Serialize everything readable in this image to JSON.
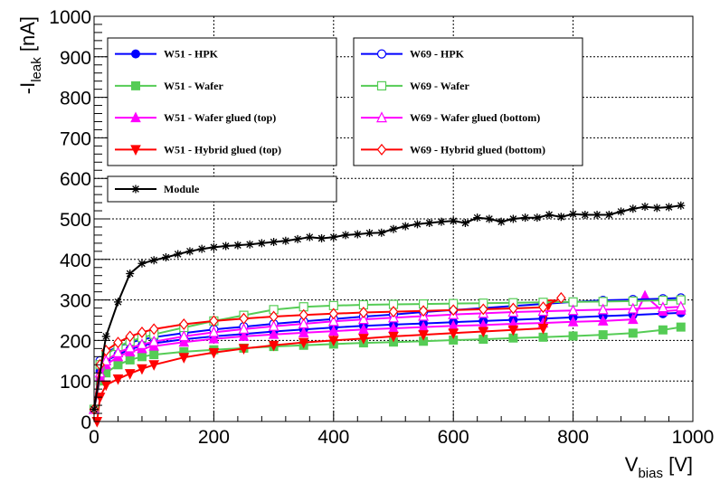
{
  "chart_data": {
    "type": "line",
    "xlabel": "V",
    "xlabel_sub": "bias",
    "xlabel_unit": " [V]",
    "ylabel": "-I",
    "ylabel_sub": "leak",
    "ylabel_unit": " [nA]",
    "xlim": [
      0,
      1000
    ],
    "ylim": [
      0,
      1000
    ],
    "x_ticks": [
      0,
      200,
      400,
      600,
      800,
      1000
    ],
    "y_ticks": [
      0,
      100,
      200,
      300,
      400,
      500,
      600,
      700,
      800,
      900,
      1000
    ],
    "grid": true,
    "legend": [
      {
        "placement": "top-left",
        "series": [
          0,
          1,
          2,
          3
        ]
      },
      {
        "placement": "top-right",
        "series": [
          4,
          5,
          6,
          7
        ]
      },
      {
        "placement": "middle-left",
        "series": [
          8
        ]
      }
    ],
    "series": [
      {
        "name": "W51 - HPK",
        "color": "#0000ff",
        "marker": "circle-filled",
        "x": [
          0,
          10,
          20,
          40,
          60,
          80,
          100,
          150,
          200,
          250,
          300,
          350,
          400,
          450,
          500,
          550,
          600,
          650,
          700,
          750,
          800,
          850,
          900,
          950,
          980
        ],
        "y": [
          30,
          125,
          150,
          165,
          178,
          187,
          193,
          203,
          210,
          216,
          222,
          227,
          232,
          236,
          239,
          242,
          245,
          248,
          251,
          254,
          257,
          260,
          263,
          266,
          268
        ]
      },
      {
        "name": "W51 - Wafer",
        "color": "#55cc55",
        "marker": "square-filled",
        "x": [
          0,
          10,
          20,
          40,
          60,
          80,
          100,
          150,
          200,
          250,
          300,
          350,
          400,
          450,
          500,
          550,
          600,
          650,
          700,
          750,
          800,
          850,
          900,
          950,
          980
        ],
        "y": [
          30,
          100,
          120,
          140,
          152,
          160,
          165,
          172,
          177,
          181,
          185,
          188,
          191,
          194,
          196,
          198,
          201,
          203,
          206,
          208,
          211,
          214,
          218,
          226,
          233
        ]
      },
      {
        "name": "W51 - Wafer glued (top)",
        "color": "#ff00ff",
        "marker": "triangle-up-filled",
        "x": [
          0,
          10,
          20,
          40,
          60,
          80,
          100,
          150,
          200,
          250,
          300,
          350,
          400,
          450,
          500,
          550,
          600,
          650,
          700,
          750,
          800,
          850,
          900,
          920,
          950,
          980
        ],
        "y": [
          30,
          110,
          140,
          160,
          172,
          180,
          186,
          196,
          204,
          210,
          215,
          219,
          223,
          227,
          230,
          233,
          236,
          238,
          241,
          243,
          246,
          248,
          252,
          310,
          272,
          275
        ]
      },
      {
        "name": "W51 - Hybrid glued (top)",
        "color": "#ff0000",
        "marker": "triangle-down-filled",
        "x": [
          5,
          10,
          20,
          40,
          60,
          80,
          100,
          150,
          200,
          250,
          300,
          350,
          400,
          450,
          500,
          550,
          600,
          650,
          700,
          750,
          760
        ],
        "y": [
          0,
          60,
          90,
          105,
          118,
          130,
          140,
          158,
          170,
          180,
          188,
          195,
          200,
          205,
          210,
          214,
          218,
          222,
          226,
          230,
          290
        ]
      },
      {
        "name": "W69 - HPK",
        "color": "#0000ff",
        "marker": "circle-open",
        "x": [
          0,
          10,
          20,
          40,
          60,
          80,
          100,
          150,
          200,
          250,
          300,
          350,
          400,
          450,
          500,
          550,
          600,
          650,
          700,
          750,
          800,
          850,
          900,
          950,
          980
        ],
        "y": [
          30,
          150,
          170,
          185,
          195,
          202,
          208,
          218,
          227,
          234,
          241,
          247,
          253,
          259,
          264,
          270,
          275,
          280,
          285,
          290,
          295,
          299,
          301,
          303,
          305
        ]
      },
      {
        "name": "W69 - Wafer",
        "color": "#55cc55",
        "marker": "square-open",
        "x": [
          0,
          10,
          20,
          40,
          60,
          80,
          100,
          150,
          200,
          250,
          300,
          350,
          400,
          450,
          500,
          550,
          600,
          650,
          700,
          750,
          800,
          850,
          900,
          950,
          980
        ],
        "y": [
          30,
          140,
          165,
          185,
          198,
          207,
          215,
          232,
          248,
          262,
          276,
          283,
          286,
          288,
          289,
          290,
          291,
          292,
          293,
          294,
          295,
          296,
          297,
          299,
          300
        ]
      },
      {
        "name": "W69 - Wafer glued (bottom)",
        "color": "#ff00ff",
        "marker": "triangle-up-open",
        "x": [
          0,
          10,
          20,
          40,
          60,
          80,
          100,
          150,
          200,
          250,
          300,
          350,
          400,
          450,
          500,
          550,
          600,
          650,
          700,
          750,
          800,
          850,
          900,
          950,
          980
        ],
        "y": [
          30,
          120,
          150,
          170,
          182,
          190,
          197,
          210,
          220,
          228,
          235,
          241,
          247,
          252,
          256,
          260,
          264,
          267,
          270,
          272,
          274,
          276,
          278,
          281,
          283
        ]
      },
      {
        "name": "W69 - Hybrid glued (bottom)",
        "color": "#ff0000",
        "marker": "diamond-open",
        "x": [
          0,
          10,
          20,
          40,
          60,
          80,
          100,
          150,
          200,
          250,
          300,
          350,
          400,
          450,
          500,
          550,
          600,
          650,
          700,
          750,
          780
        ],
        "y": [
          30,
          140,
          175,
          195,
          210,
          220,
          228,
          240,
          248,
          254,
          259,
          263,
          266,
          269,
          271,
          273,
          275,
          277,
          279,
          282,
          305
        ]
      },
      {
        "name": "Module",
        "color": "#000000",
        "marker": "star",
        "x": [
          0,
          20,
          40,
          60,
          80,
          100,
          120,
          140,
          160,
          180,
          200,
          220,
          240,
          260,
          280,
          300,
          320,
          340,
          360,
          380,
          400,
          420,
          440,
          460,
          480,
          500,
          520,
          540,
          560,
          580,
          600,
          620,
          640,
          660,
          680,
          700,
          720,
          740,
          760,
          780,
          800,
          820,
          840,
          860,
          880,
          900,
          920,
          940,
          960,
          980
        ],
        "y": [
          30,
          210,
          295,
          365,
          390,
          398,
          405,
          413,
          420,
          426,
          430,
          433,
          435,
          437,
          440,
          443,
          446,
          450,
          455,
          452,
          455,
          460,
          462,
          465,
          466,
          475,
          482,
          487,
          490,
          493,
          495,
          490,
          503,
          500,
          493,
          500,
          503,
          503,
          510,
          505,
          512,
          510,
          510,
          510,
          518,
          525,
          530,
          527,
          529,
          533
        ]
      }
    ]
  }
}
